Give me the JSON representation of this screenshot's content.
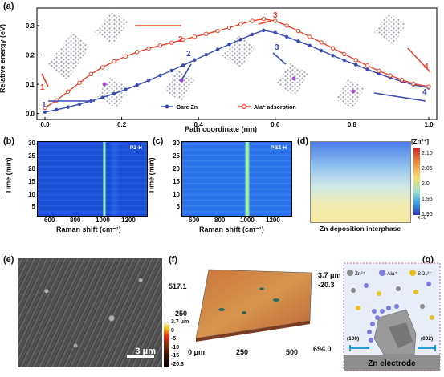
{
  "panels": {
    "a": "(a)",
    "b": "(b)",
    "c": "(c)",
    "d": "(d)",
    "e": "(e)",
    "f": "(f)",
    "g": "(g)"
  },
  "colors": {
    "bare_zn": "#3b4bb0",
    "ala_adsorption": "#e8432c",
    "raman_bg": "#1d52d8"
  },
  "chart_data": [
    {
      "type": "line",
      "panel": "a",
      "xlabel": "Path coordinate (nm)",
      "ylabel": "Relative energy (eV)",
      "xlim": [
        0.0,
        1.0
      ],
      "ylim": [
        -0.02,
        0.36
      ],
      "xticks": [
        "0.0",
        "0.2",
        "0.4",
        "0.6",
        "0.8",
        "1.0"
      ],
      "yticks": [
        "0.0",
        "0.1",
        "0.2",
        "0.3"
      ],
      "legend": "bottom-center",
      "series": [
        {
          "name": "Bare Zn",
          "color": "#3b4bb0",
          "x": [
            0.0,
            0.03,
            0.06,
            0.09,
            0.12,
            0.15,
            0.18,
            0.21,
            0.24,
            0.27,
            0.3,
            0.33,
            0.36,
            0.39,
            0.42,
            0.45,
            0.48,
            0.51,
            0.54,
            0.57,
            0.6,
            0.63,
            0.66,
            0.69,
            0.72,
            0.75,
            0.78,
            0.81,
            0.84,
            0.87,
            0.9,
            0.93,
            0.96,
            1.0
          ],
          "y": [
            0.005,
            0.013,
            0.022,
            0.032,
            0.043,
            0.055,
            0.068,
            0.082,
            0.097,
            0.113,
            0.13,
            0.147,
            0.165,
            0.183,
            0.201,
            0.219,
            0.236,
            0.253,
            0.27,
            0.284,
            0.276,
            0.262,
            0.247,
            0.232,
            0.215,
            0.198,
            0.182,
            0.167,
            0.151,
            0.136,
            0.122,
            0.11,
            0.098,
            0.088
          ]
        },
        {
          "name": "Ala⁺ adsorption",
          "color": "#e8432c",
          "x": [
            0.0,
            0.03,
            0.06,
            0.09,
            0.12,
            0.15,
            0.18,
            0.21,
            0.24,
            0.27,
            0.3,
            0.33,
            0.36,
            0.39,
            0.42,
            0.45,
            0.48,
            0.51,
            0.54,
            0.57,
            0.6,
            0.63,
            0.66,
            0.69,
            0.72,
            0.75,
            0.78,
            0.81,
            0.84,
            0.87,
            0.9,
            0.93,
            0.96,
            1.0
          ],
          "y": [
            0.02,
            0.045,
            0.075,
            0.105,
            0.135,
            0.158,
            0.178,
            0.195,
            0.21,
            0.222,
            0.232,
            0.242,
            0.252,
            0.262,
            0.272,
            0.282,
            0.293,
            0.305,
            0.316,
            0.323,
            0.316,
            0.3,
            0.282,
            0.262,
            0.243,
            0.223,
            0.203,
            0.183,
            0.164,
            0.146,
            0.13,
            0.115,
            0.102,
            0.092
          ]
        }
      ],
      "annotations": [
        "1",
        "2",
        "3",
        "4",
        "1",
        "2",
        "3",
        "4"
      ]
    },
    {
      "type": "heatmap",
      "panel": "b",
      "title": "PZ-H",
      "xlabel": "Raman shift (cm⁻¹)",
      "ylabel": "Time (min)",
      "xticks": [
        "600",
        "800",
        "1000",
        "1200"
      ],
      "yticks": [
        "5",
        "10",
        "15",
        "20",
        "25",
        "30"
      ],
      "peak_x": 980
    },
    {
      "type": "heatmap",
      "panel": "c",
      "title": "PBZ-H",
      "xlabel": "Raman shift (cm⁻¹)",
      "ylabel": "Time (min)",
      "xticks": [
        "600",
        "800",
        "1000",
        "1200"
      ],
      "yticks": [
        "5",
        "10",
        "15",
        "20",
        "25",
        "30"
      ],
      "peak_x": 980
    },
    {
      "type": "heatmap",
      "panel": "d",
      "xlabel": "Zn deposition interphase",
      "colorbar_title": "[Zn²⁺]",
      "colorbar_ticks": [
        "2.10",
        "2.05",
        "2.0",
        "1.95",
        "1.90"
      ],
      "colorbar_unit": "x10³"
    }
  ],
  "panel_a": {
    "legend_bare": "Bare Zn",
    "legend_ala": "Ala⁺ adsorption"
  },
  "panel_e": {
    "scalebar": "3 μm"
  },
  "panel_f": {
    "y_top": "517.1",
    "y_mid": "250",
    "x_labels": [
      "0 μm",
      "250",
      "500",
      "694.0"
    ],
    "height_top": "3.7 μm",
    "height_bottom": "-20.3",
    "cbar_ticks": [
      "3.7 μm",
      "0",
      "-5",
      "-10",
      "-15",
      "-20.3"
    ]
  },
  "panel_g": {
    "legend": [
      "Zn²⁺",
      "Ala⁺",
      "SO₄²⁻"
    ],
    "facet_left": "(100)",
    "facet_right": "(002)",
    "electrode": "Zn electrode"
  }
}
